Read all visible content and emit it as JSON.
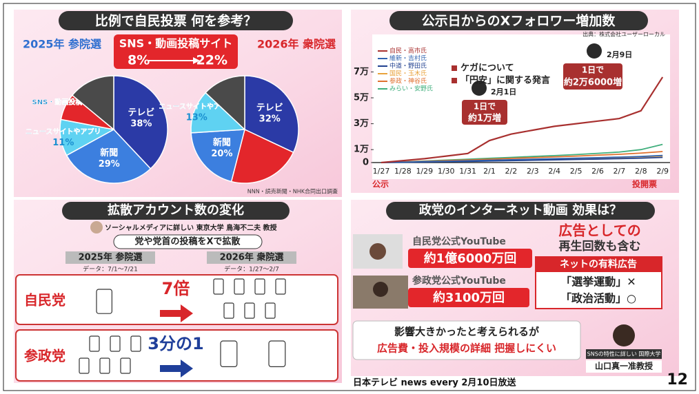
{
  "top_left": {
    "title": "比例で自民投票 何を参考？",
    "left_year": "2025年 参院選",
    "right_year": "2026年 衆院選",
    "source": "NNN・読売新聞・NHK合同出口調査"
  },
  "chart_data": [
    {
      "type": "pie",
      "categories": [
        "テレビ",
        "新聞",
        "ニュースサイトやアプリ",
        "SNS・動画投稿サイト",
        null
      ],
      "values": [
        38,
        29,
        11,
        8,
        14
      ],
      "value_labels": [
        "38%",
        "29%",
        "11%",
        "8%",
        null
      ],
      "colors": [
        "#2b3aa6",
        "#3c7fdf",
        "#5fd2f2",
        "#e3262b",
        "#4a4a4a"
      ]
    },
    {
      "type": "pie",
      "categories": [
        "テレビ",
        null,
        "新聞",
        "ニュースサイトやアプリ",
        null
      ],
      "values": [
        32,
        22,
        20,
        13,
        13
      ],
      "value_labels": [
        "32%",
        "22%",
        "20%",
        "13%",
        null
      ],
      "colors": [
        "#2b3aa6",
        "#e3262b",
        "#3c7fdf",
        "#5fd2f2",
        "#4a4a4a"
      ]
    },
    {
      "type": "line",
      "title": "公示日からのXフォロワー増加数",
      "source": "出典：株式会社ユーザーローカル",
      "categories": [
        "1/27",
        "1/28",
        "1/29",
        "1/30",
        "1/31",
        "2/1",
        "2/2",
        "2/3",
        "2/4",
        "2/5",
        "2/6",
        "2/7",
        "2/8",
        "2/9"
      ],
      "x_start_label": "公示",
      "x_end_label": "投開票",
      "ylim": [
        0,
        75000
      ],
      "yticks": [
        {
          "value": 0,
          "label": "0"
        },
        {
          "value": 10000,
          "label": "1万"
        },
        {
          "value": 30000,
          "label": "3万"
        },
        {
          "value": 50000,
          "label": "5万"
        },
        {
          "value": 70000,
          "label": "7万"
        }
      ],
      "series": [
        {
          "name": "自民・高市氏",
          "color": "#a8302f",
          "values": [
            0,
            1500,
            3000,
            5000,
            7000,
            17000,
            22000,
            25000,
            28000,
            30000,
            32000,
            34000,
            40000,
            66000
          ]
        },
        {
          "name": "維新・吉村氏",
          "color": "#2f62b0",
          "values": [
            0,
            300,
            700,
            1000,
            1400,
            1800,
            2200,
            2600,
            3000,
            3400,
            3800,
            4200,
            4700,
            5500
          ]
        },
        {
          "name": "中道・野田氏",
          "color": "#1f3f8f",
          "values": [
            0,
            200,
            400,
            700,
            900,
            1200,
            1500,
            1800,
            2100,
            2400,
            2700,
            3000,
            3400,
            4000
          ]
        },
        {
          "name": "国民・玉木氏",
          "color": "#e9a33c",
          "values": [
            0,
            300,
            600,
            900,
            1200,
            1500,
            1900,
            2300,
            2700,
            3100,
            3500,
            3900,
            4400,
            5000
          ]
        },
        {
          "name": "参政・神谷氏",
          "color": "#e0702e",
          "values": [
            0,
            500,
            1000,
            1500,
            2000,
            2600,
            3200,
            3800,
            4400,
            5000,
            5700,
            6400,
            7300,
            8500
          ]
        },
        {
          "name": "みらい・安野氏",
          "color": "#3fae7c",
          "values": [
            0,
            600,
            1200,
            1900,
            2600,
            3300,
            4000,
            4700,
            5400,
            6200,
            7100,
            8100,
            10000,
            14000
          ]
        }
      ],
      "annotations": [
        "ケガについて",
        "「円安」に関する発言",
        "2月1日",
        "1日で",
        "約1万増",
        "2月9日",
        "1日で",
        "約2万6000増"
      ]
    }
  ],
  "bottom_left": {
    "title": "拡散アカウント数の変化",
    "expert": "ソーシャルメディアに詳しい 東京大学 鳥海不二夫 教授",
    "caption": "党や党首の投稿をXで拡散",
    "left_year": "2025年 参院選",
    "left_period": "データ：7/1～7/21",
    "right_year": "2026年 衆院選",
    "right_period": "データ：1/27～2/7",
    "rows": [
      {
        "party": "自民党",
        "change": "7倍"
      },
      {
        "party": "参政党",
        "change": "3分の1"
      }
    ]
  },
  "bottom_right": {
    "title": "政党のインターネット動画 効果は？",
    "ldp_channel": "自民党公式YouTube",
    "ldp_views": "約1億6000万回",
    "sanseito_channel": "参政党公式YouTube",
    "sanseito_views": "約3100万回",
    "note_line1": "広告としての",
    "note_line2": "再生回数も含む",
    "box_title": "ネットの有料広告",
    "box_line1": "「選挙運動」✕",
    "box_line2": "「政治活動」○",
    "comment_line1": "影響大きかったと考えられるが",
    "comment_line2": "広告費・投入規模の詳細 把握しにくい",
    "expert_affiliation": "SNSの特性に詳しい 国際大学",
    "expert_name": "山口真一准教授"
  },
  "footer": {
    "credit": "日本テレビ news every 2月10日放送",
    "page": "12"
  }
}
